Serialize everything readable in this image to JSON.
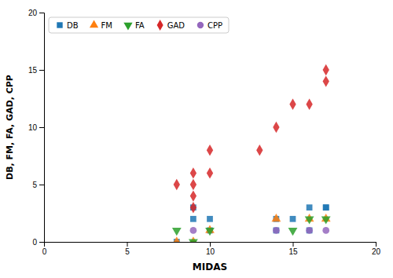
{
  "chart_data": {
    "type": "scatter",
    "xlabel": "MIDAS",
    "ylabel": "DB, FM, FA, GAD, CPP",
    "xlim": [
      0,
      20
    ],
    "ylim": [
      0,
      20
    ],
    "xticks": [
      0,
      5,
      10,
      15,
      20
    ],
    "yticks": [
      0,
      5,
      10,
      15,
      20
    ],
    "legend": "upper left",
    "series": [
      {
        "name": "DB",
        "marker": "square",
        "x": [
          8,
          9,
          9,
          10,
          10,
          14,
          14,
          15,
          16,
          16,
          17,
          17
        ],
        "values": [
          0,
          3,
          2,
          2,
          1,
          2,
          1,
          2,
          3,
          1,
          3,
          3
        ]
      },
      {
        "name": "FM",
        "marker": "triangle-up",
        "x": [
          8,
          9,
          10,
          14,
          16,
          17
        ],
        "values": [
          0,
          0,
          1,
          2,
          2,
          2
        ]
      },
      {
        "name": "FA",
        "marker": "triangle-down",
        "x": [
          8,
          9,
          10,
          15,
          16,
          17
        ],
        "values": [
          1,
          0,
          1,
          1,
          2,
          2
        ]
      },
      {
        "name": "GAD",
        "marker": "diamond",
        "x": [
          8,
          9,
          9,
          9,
          9,
          10,
          10,
          13,
          14,
          15,
          16,
          17,
          17
        ],
        "values": [
          5,
          6,
          5,
          4,
          3,
          6,
          8,
          8,
          10,
          12,
          12,
          15,
          14
        ]
      },
      {
        "name": "CPP",
        "marker": "circle",
        "x": [
          9,
          14,
          16,
          17
        ],
        "values": [
          1,
          1,
          1,
          1
        ]
      }
    ]
  }
}
